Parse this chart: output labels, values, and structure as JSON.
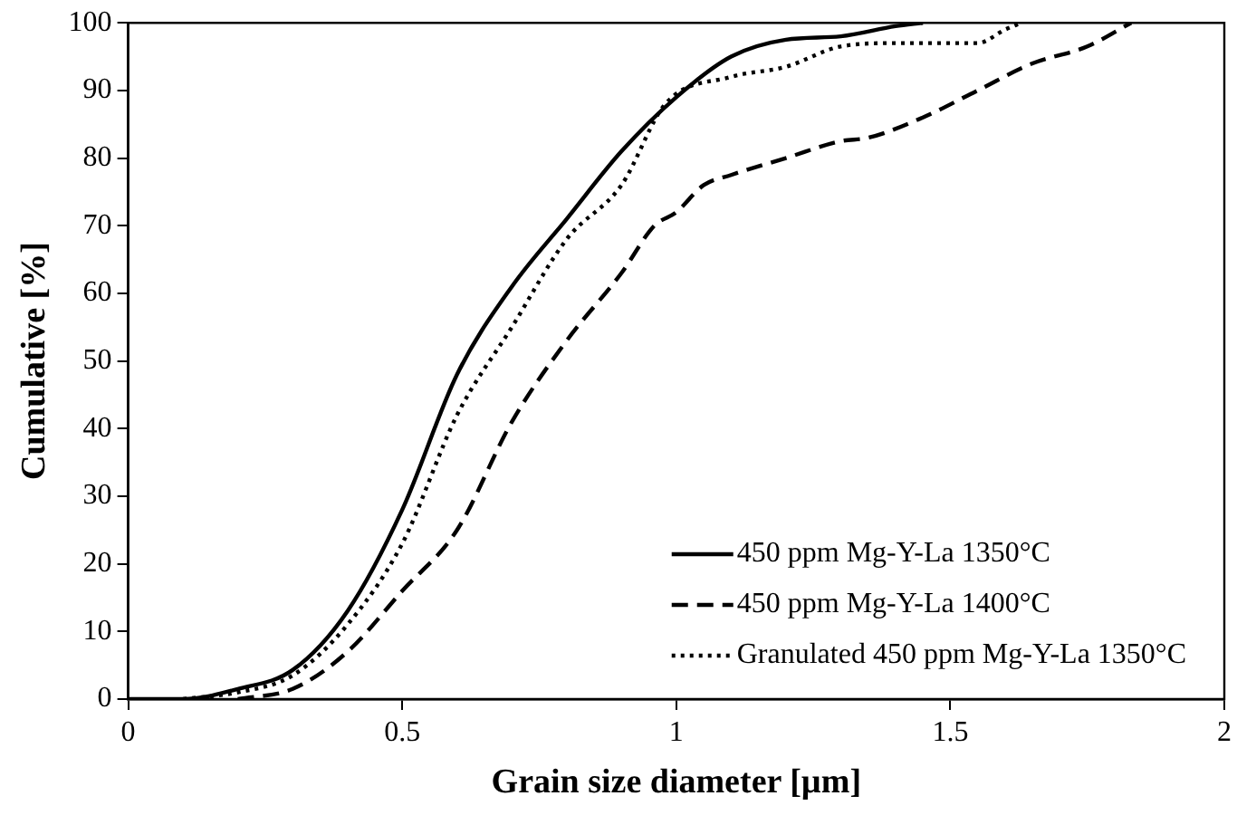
{
  "chart_data": {
    "type": "line",
    "xlabel": "Grain size diameter [µm]",
    "ylabel": "Cumulative [%]",
    "xlim": [
      0,
      2
    ],
    "ylim": [
      0,
      100
    ],
    "xticks": [
      0,
      0.5,
      1,
      1.5,
      2
    ],
    "yticks": [
      0,
      10,
      20,
      30,
      40,
      50,
      60,
      70,
      80,
      90,
      100
    ],
    "grid": false,
    "legend": "bottom right",
    "marker": "none",
    "series": [
      {
        "name": "450 ppm Mg-Y-La 1350°C",
        "color": "#000000",
        "line_style": "solid",
        "x": [
          0,
          0.1,
          0.2,
          0.3,
          0.4,
          0.5,
          0.6,
          0.7,
          0.8,
          0.9,
          1.0,
          1.1,
          1.2,
          1.3,
          1.4,
          1.45
        ],
        "values": [
          0,
          0,
          1.5,
          4.3,
          13,
          28,
          48,
          61,
          71,
          81,
          89,
          95,
          97.5,
          98,
          99.5,
          100
        ]
      },
      {
        "name": "450 ppm Mg-Y-La 1400°C",
        "color": "#000000",
        "line_style": "dashed",
        "x": [
          0.2,
          0.3,
          0.4,
          0.5,
          0.6,
          0.7,
          0.8,
          0.9,
          0.96,
          1.0,
          1.05,
          1.1,
          1.2,
          1.3,
          1.35,
          1.45,
          1.55,
          1.65,
          1.75,
          1.83
        ],
        "values": [
          0,
          1.5,
          7,
          16,
          25,
          41,
          53,
          63,
          70,
          72,
          76,
          77.5,
          80,
          82.5,
          83,
          86,
          90,
          94,
          96.5,
          100
        ]
      },
      {
        "name": "Granulated 450 ppm Mg-Y-La 1350°C",
        "color": "#000000",
        "line_style": "dotted",
        "x": [
          0.1,
          0.2,
          0.3,
          0.4,
          0.5,
          0.6,
          0.7,
          0.8,
          0.9,
          0.98,
          1.1,
          1.2,
          1.3,
          1.4,
          1.55,
          1.6,
          1.63
        ],
        "values": [
          0,
          1,
          3.5,
          11,
          23,
          42,
          55,
          68,
          76,
          88,
          92,
          93.5,
          96.5,
          97,
          97,
          99,
          100
        ]
      }
    ]
  }
}
